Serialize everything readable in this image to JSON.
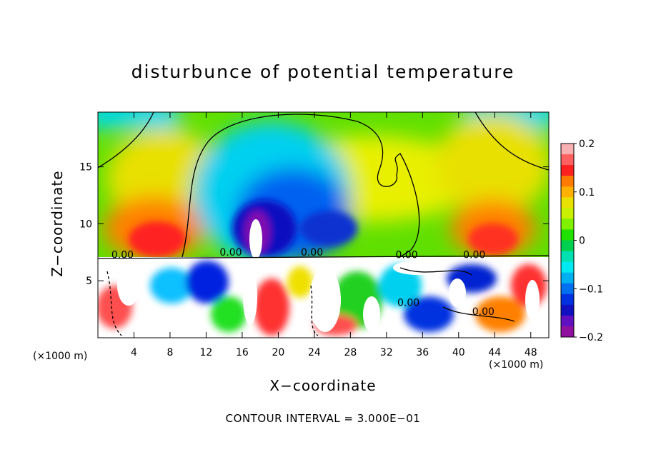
{
  "chart_data": {
    "type": "heatmap",
    "title": "disturbunce of potential temperature",
    "xlabel": "X−coordinate",
    "ylabel": "Z−coordinate",
    "x_unit": "(×1000 m)",
    "x_ticks": [
      4,
      8,
      12,
      16,
      20,
      24,
      28,
      32,
      36,
      40,
      44,
      48
    ],
    "y_ticks": [
      5,
      10,
      15
    ],
    "xlim": [
      0,
      50
    ],
    "ylim": [
      0,
      19.8
    ],
    "colorbar": {
      "ticks": [
        "0.2",
        "0.1",
        "0",
        "−0.1",
        "−0.2"
      ],
      "tick_values": [
        0.2,
        0.1,
        0,
        -0.1,
        -0.2
      ],
      "range": [
        -0.2,
        0.2
      ],
      "colors": [
        "#f8b0b0",
        "#ff6060",
        "#ff2020",
        "#ff7a00",
        "#ffb000",
        "#e8e000",
        "#c8f000",
        "#80f000",
        "#20e000",
        "#00d050",
        "#00e0b0",
        "#00e8f0",
        "#00b0f0",
        "#0070f0",
        "#0030e0",
        "#1010c0",
        "#6010c0",
        "#9010a0"
      ]
    },
    "contour_labels": [
      "0.00",
      "0.00",
      "0.00",
      "0.00",
      "0.00",
      "0.00",
      "0.00"
    ],
    "contour_interval_text": "CONTOUR INTERVAL = 3.000E−01",
    "annotations": [
      "Cold bubble centered near x=17, z=10 (−0.2)",
      "Warm anomalies near x=7 and x=44 at z≈8 (+0.15)"
    ]
  }
}
